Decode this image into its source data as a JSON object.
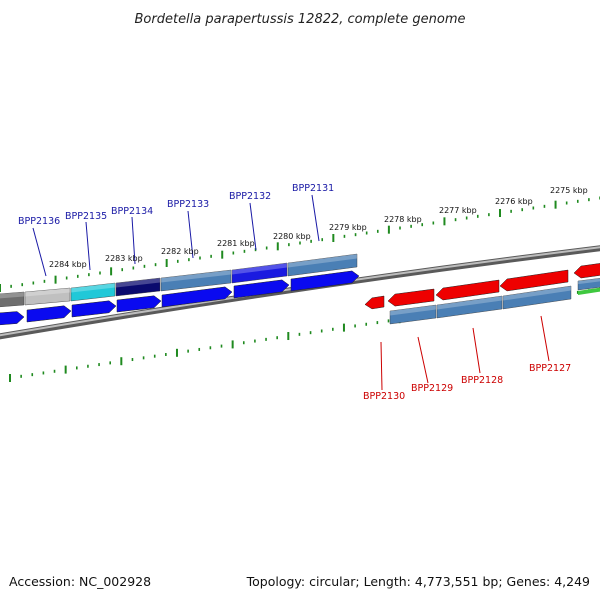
{
  "title": "Bordetella parapertussis 12822, complete genome",
  "footer": {
    "accession": "Accession: NC_002928",
    "summary": "Topology: circular; Length: 4,773,551 bp; Genes: 4,249"
  },
  "colors": {
    "backbone": "#8a8a8a",
    "tick": "#1f8a1f",
    "fwd_label": "#1a1aa6",
    "rev_label": "#cc0000",
    "fwd_gene": "#0a0af0",
    "rev_gene": "#ee0000",
    "cog_steel": "#4a7fb5",
    "cog_navy": "#0a0a6e",
    "cog_cyan": "#20c8d8",
    "cog_silver": "#c0c0c0",
    "cog_gray": "#6e6e6e",
    "cog_blue": "#1a1ae0",
    "cog_green": "#3fc83f"
  },
  "kbp_labels": [
    "2284 kbp",
    "2283 kbp",
    "2282 kbp",
    "2281 kbp",
    "2280 kbp",
    "2279 kbp",
    "2278 kbp",
    "2277 kbp",
    "2276 kbp",
    "2275 kbp"
  ],
  "fwd_genes": [
    "BPP2136",
    "BPP2135",
    "BPP2134",
    "BPP2133",
    "BPP2132",
    "BPP2131"
  ],
  "rev_genes": [
    "BPP2130",
    "BPP2129",
    "BPP2128",
    "BPP2127"
  ]
}
